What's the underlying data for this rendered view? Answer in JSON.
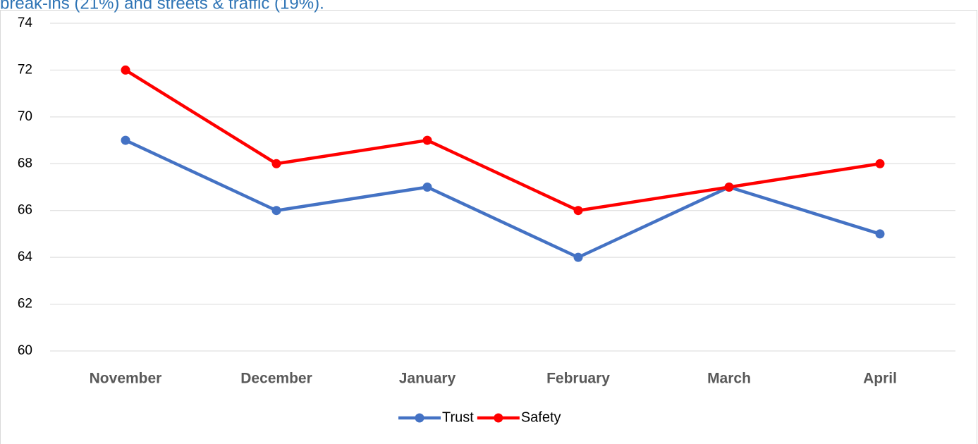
{
  "caption": "break-ins (21%) and streets & traffic (19%).",
  "chart_data": {
    "type": "line",
    "categories": [
      "November",
      "December",
      "January",
      "February",
      "March",
      "April"
    ],
    "series": [
      {
        "name": "Trust",
        "color": "#4472c4",
        "values": [
          69,
          66,
          67,
          64,
          67,
          65
        ]
      },
      {
        "name": "Safety",
        "color": "#ff0000",
        "values": [
          72,
          68,
          69,
          66,
          67,
          68
        ]
      }
    ],
    "ylim": [
      60,
      74
    ],
    "yticks": [
      60,
      62,
      64,
      66,
      68,
      70,
      72,
      74
    ],
    "grid": true,
    "legend": "bottom"
  }
}
